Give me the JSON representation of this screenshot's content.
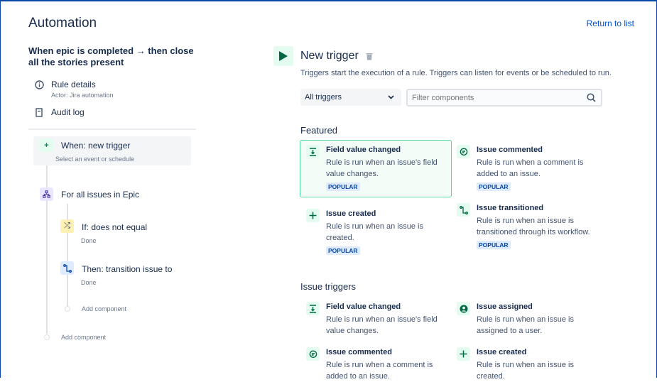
{
  "header": {
    "title": "Automation",
    "return_link": "Return to list"
  },
  "sidebar": {
    "rule_name": "When epic is completed → then close all the stories present",
    "items": [
      {
        "label": "Rule details",
        "sub": "Actor: Jira automation",
        "icon": "info-icon"
      },
      {
        "label": "Audit log",
        "icon": "document-icon"
      }
    ],
    "flow": {
      "trigger": {
        "label": "When: new trigger",
        "sub": "Select an event or schedule"
      },
      "branch": {
        "label": "For all issues in Epic"
      },
      "condition": {
        "label": "If: does not equal",
        "sub": "Done"
      },
      "action": {
        "label": "Then: transition issue to",
        "sub": "Done"
      },
      "add_inner": "Add component",
      "add_outer": "Add component"
    }
  },
  "main": {
    "title": "New trigger",
    "description": "Triggers start the execution of a rule. Triggers can listen for events or be scheduled to run.",
    "select_value": "All triggers",
    "filter_placeholder": "Filter components",
    "featured_title": "Featured",
    "featured": [
      {
        "name": "Field value changed",
        "desc": "Rule is run when an issue's field value changes.",
        "badge": "POPULAR",
        "icon": "field-change-icon",
        "selected": true
      },
      {
        "name": "Issue commented",
        "desc": "Rule is run when a comment is added to an issue.",
        "badge": "POPULAR",
        "icon": "comment-icon"
      },
      {
        "name": "Issue created",
        "desc": "Rule is run when an issue is created.",
        "badge": "POPULAR",
        "icon": "plus-icon"
      },
      {
        "name": "Issue transitioned",
        "desc": "Rule is run when an issue is transitioned through its workflow.",
        "badge": "POPULAR",
        "icon": "transition-icon"
      }
    ],
    "issue_triggers_title": "Issue triggers",
    "issue_triggers": [
      {
        "name": "Field value changed",
        "desc": "Rule is run when an issue's field value changes.",
        "icon": "field-change-icon"
      },
      {
        "name": "Issue assigned",
        "desc": "Rule is run when an issue is assigned to a user.",
        "icon": "user-icon"
      },
      {
        "name": "Issue commented",
        "desc": "Rule is run when a comment is added to an issue.",
        "icon": "comment-icon"
      },
      {
        "name": "Issue created",
        "desc": "Rule is run when an issue is created.",
        "icon": "plus-icon"
      }
    ]
  },
  "colors": {
    "accent": "#0052cc",
    "green": "#00875a",
    "selected_border": "#57d9a3",
    "badge_bg": "#deebff"
  }
}
